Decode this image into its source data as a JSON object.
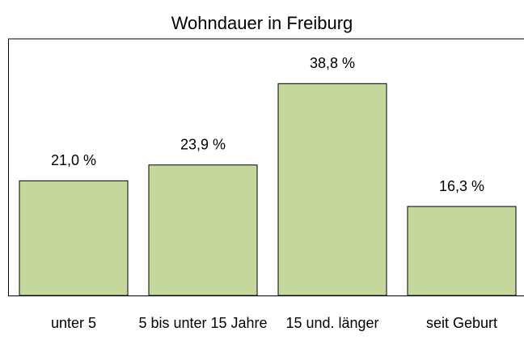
{
  "chart_data": {
    "type": "bar",
    "title": "Wohndauer in Freiburg",
    "categories": [
      "unter 5",
      "5 bis unter 15 Jahre",
      "15 und. länger",
      "seit Geburt"
    ],
    "values": [
      21.0,
      23.9,
      38.8,
      16.3
    ],
    "value_labels": [
      "21,0 %",
      "23,9 %",
      "38,8 %",
      "16,3 %"
    ],
    "color": "#c5d89b",
    "ylim": [
      0,
      47
    ]
  }
}
